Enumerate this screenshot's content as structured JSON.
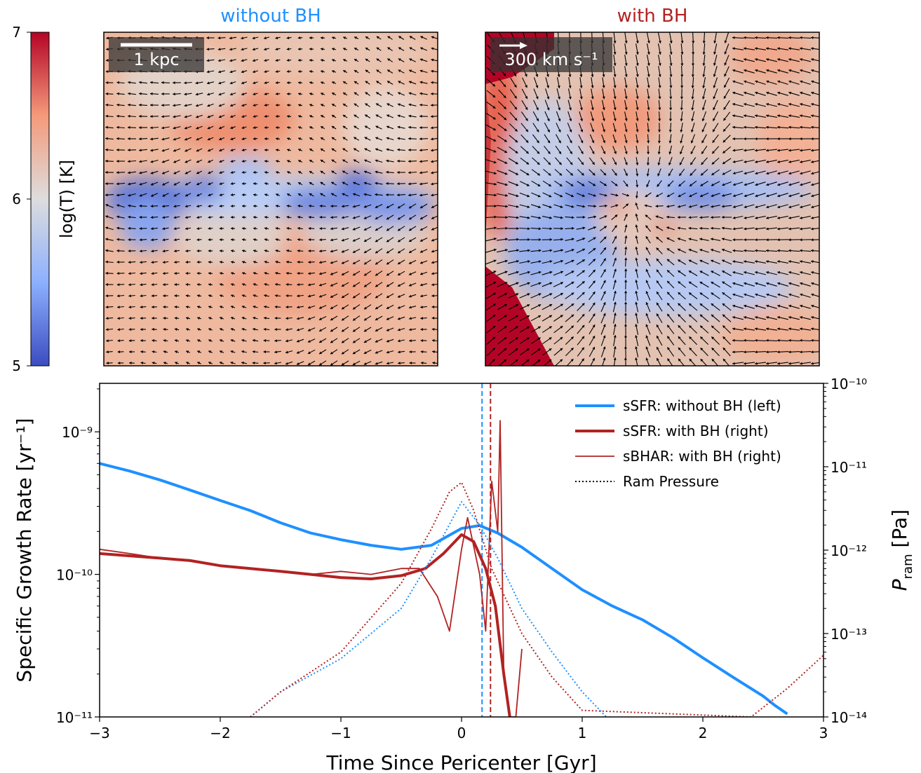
{
  "colorbar": {
    "label": "log(T) [K]",
    "ticks": [
      "5",
      "6",
      "7"
    ],
    "range": [
      5,
      7
    ],
    "colors": [
      "#3b4cc0",
      "#dddddd",
      "#b40426"
    ]
  },
  "panels": [
    {
      "title": "without BH",
      "title_color": "#1e90ff",
      "scale_label": "1 kpc"
    },
    {
      "title": "with BH",
      "title_color": "#b22222",
      "scale_label": "300 km s⁻¹"
    }
  ],
  "chart_data": {
    "type": "line",
    "xlabel": "Time Since Pericenter [Gyr]",
    "ylabel": "Specific Growth Rate [yr⁻¹]",
    "y2label": "P_ram [Pa]",
    "xlim": [
      -3,
      3
    ],
    "ylim_log10": [
      -11,
      -8.66
    ],
    "y2lim_log10": [
      -14,
      -10
    ],
    "xticks": [
      "−3",
      "−2",
      "−1",
      "0",
      "1",
      "2",
      "3"
    ],
    "yticks": [
      "10⁻¹¹",
      "10⁻¹⁰",
      "10⁻⁹"
    ],
    "y2ticks": [
      "10⁻¹⁴",
      "10⁻¹³",
      "10⁻¹²",
      "10⁻¹¹",
      "10⁻¹⁰"
    ],
    "legend_position": "top-right",
    "vlines": [
      {
        "x": 0.17,
        "color": "#1e90ff"
      },
      {
        "x": 0.24,
        "color": "#b22222"
      }
    ],
    "series": [
      {
        "name": "sSFR: without BH (left)",
        "color": "#1e90ff",
        "style": "thick",
        "axis": "left",
        "x": [
          -3.0,
          -2.75,
          -2.5,
          -2.25,
          -2.0,
          -1.75,
          -1.5,
          -1.25,
          -1.0,
          -0.75,
          -0.5,
          -0.25,
          0.0,
          0.15,
          0.3,
          0.5,
          0.75,
          1.0,
          1.25,
          1.5,
          1.75,
          2.0,
          2.25,
          2.5,
          2.6,
          2.7
        ],
        "y": [
          6e-10,
          5.3e-10,
          4.6e-10,
          3.9e-10,
          3.3e-10,
          2.8e-10,
          2.3e-10,
          1.95e-10,
          1.75e-10,
          1.6e-10,
          1.5e-10,
          1.6e-10,
          2.1e-10,
          2.2e-10,
          1.95e-10,
          1.55e-10,
          1.1e-10,
          7.8e-11,
          6e-11,
          4.8e-11,
          3.6e-11,
          2.6e-11,
          1.9e-11,
          1.4e-11,
          1.2e-11,
          1.05e-11
        ]
      },
      {
        "name": "sSFR: with BH (right)",
        "color": "#b22222",
        "style": "thick",
        "axis": "left",
        "x": [
          -3.0,
          -2.75,
          -2.5,
          -2.25,
          -2.0,
          -1.75,
          -1.5,
          -1.25,
          -1.0,
          -0.75,
          -0.5,
          -0.3,
          -0.15,
          0.0,
          0.1,
          0.2,
          0.28,
          0.35,
          0.4
        ],
        "y": [
          1.4e-10,
          1.35e-10,
          1.3e-10,
          1.25e-10,
          1.15e-10,
          1.1e-10,
          1.05e-10,
          1e-10,
          9.5e-11,
          9.3e-11,
          9.8e-11,
          1.1e-10,
          1.4e-10,
          1.9e-10,
          1.7e-10,
          1.1e-10,
          6e-11,
          2e-11,
          1e-11
        ]
      },
      {
        "name": "sBHAR: with BH (right)",
        "color": "#b22222",
        "style": "thin",
        "axis": "left",
        "x": [
          -3.0,
          -2.75,
          -2.5,
          -2.25,
          -2.0,
          -1.75,
          -1.5,
          -1.25,
          -1.0,
          -0.75,
          -0.5,
          -0.35,
          -0.2,
          -0.1,
          0.0,
          0.05,
          0.15,
          0.2,
          0.25,
          0.3,
          0.32,
          0.35,
          0.4,
          0.45,
          0.5
        ],
        "y": [
          1.5e-10,
          1.4e-10,
          1.3e-10,
          1.25e-10,
          1.15e-10,
          1.1e-10,
          1.05e-10,
          1e-10,
          1.05e-10,
          1e-10,
          1.1e-10,
          1.1e-10,
          7e-11,
          4e-11,
          1.5e-10,
          2.5e-10,
          1e-10,
          4e-11,
          4.5e-10,
          2e-10,
          1.2e-09,
          2e-11,
          1e-11,
          1e-11,
          3e-11
        ]
      },
      {
        "name": "Ram Pressure",
        "color": "#000000",
        "style": "dotted",
        "axis": "right",
        "legend": true,
        "x": [],
        "y": []
      },
      {
        "name": "",
        "color": "#1e90ff",
        "style": "dotted",
        "axis": "right",
        "legend": false,
        "x": [
          -1.75,
          -1.5,
          -1.0,
          -0.5,
          -0.25,
          0.0,
          0.15,
          0.3,
          0.5,
          0.75,
          1.0,
          1.2
        ],
        "y": [
          1e-14,
          2e-14,
          5e-14,
          2e-13,
          8e-13,
          3.8e-12,
          2e-12,
          8e-13,
          2e-13,
          6e-14,
          2e-14,
          1e-14
        ]
      },
      {
        "name": "",
        "color": "#b22222",
        "style": "dotted",
        "axis": "right",
        "legend": false,
        "x": [
          -1.75,
          -1.5,
          -1.0,
          -0.5,
          -0.25,
          -0.1,
          0.0,
          0.1,
          0.25,
          0.5,
          0.75,
          1.0,
          2.4,
          2.7,
          3.0
        ],
        "y": [
          1e-14,
          2e-14,
          6e-14,
          4e-13,
          1.8e-12,
          5e-12,
          6.5e-12,
          3e-12,
          6e-13,
          1e-13,
          3e-14,
          1.2e-14,
          1e-14,
          2.2e-14,
          5.5e-14
        ]
      }
    ]
  }
}
